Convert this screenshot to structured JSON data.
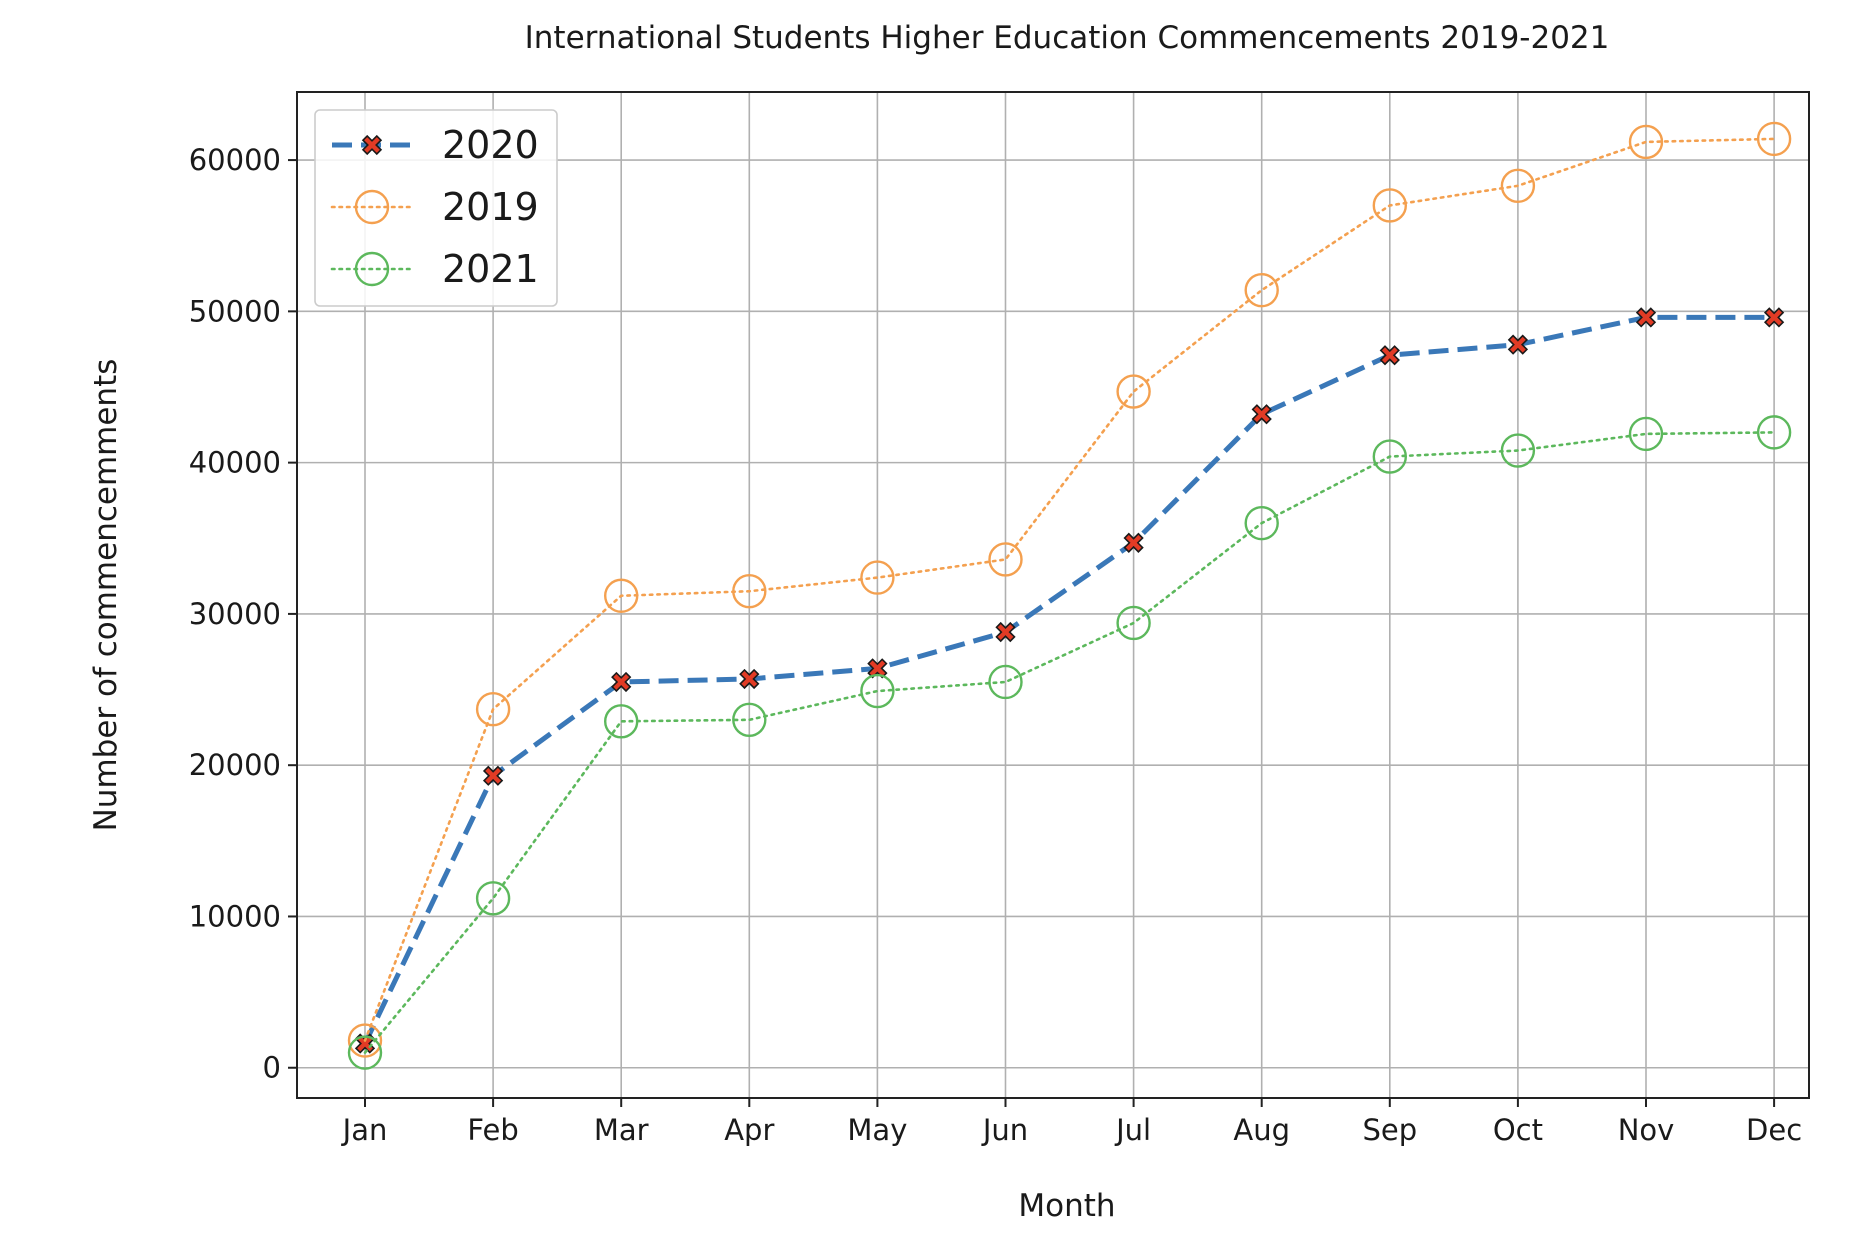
{
  "chart_data": {
    "type": "line",
    "title": "International Students Higher Education Commencements 2019-2021",
    "xlabel": "Month",
    "ylabel": "Number of commencemments",
    "categories": [
      "Jan",
      "Feb",
      "Mar",
      "Apr",
      "May",
      "Jun",
      "Jul",
      "Aug",
      "Sep",
      "Oct",
      "Nov",
      "Dec"
    ],
    "ylim": [
      -2000,
      64500
    ],
    "yticks": [
      0,
      10000,
      20000,
      30000,
      40000,
      50000,
      60000
    ],
    "grid": true,
    "legend_position": "top-left",
    "series": [
      {
        "name": "2020",
        "line_style": "dashed",
        "marker": "x-filled",
        "color": "#3a78b8",
        "marker_color": "#e23b25",
        "values": [
          1600,
          19300,
          25500,
          25700,
          26400,
          28800,
          34700,
          43200,
          47100,
          47800,
          49600,
          49600
        ]
      },
      {
        "name": "2019",
        "line_style": "dotted",
        "marker": "circle-open",
        "color": "#f4a04f",
        "values": [
          1800,
          23700,
          31200,
          31500,
          32400,
          33600,
          44700,
          51400,
          57000,
          58300,
          61200,
          61400
        ]
      },
      {
        "name": "2021",
        "line_style": "dotted",
        "marker": "circle-open",
        "color": "#5cb85c",
        "values": [
          1000,
          11200,
          22900,
          23000,
          24900,
          25500,
          29400,
          36000,
          40400,
          40800,
          41900,
          42000
        ]
      }
    ]
  }
}
